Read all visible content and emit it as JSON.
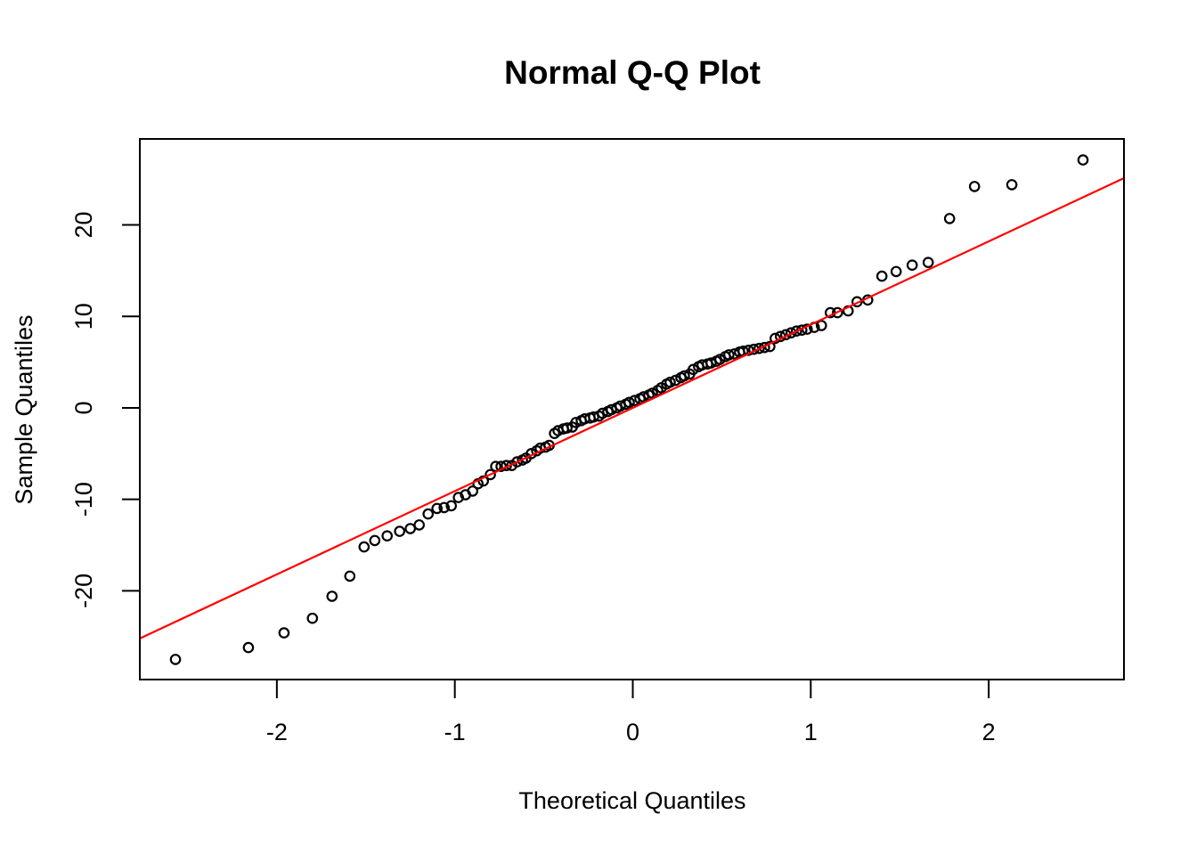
{
  "figure": {
    "background": "#FFFFFF",
    "foreground": "#000000"
  },
  "chart_data": {
    "type": "scatter",
    "title": "Normal Q-Q Plot",
    "xlabel": "Theoretical Quantiles",
    "ylabel": "Sample Quantiles",
    "x_ticks": [
      -2,
      -1,
      0,
      1,
      2
    ],
    "y_ticks": [
      -20,
      -10,
      0,
      10,
      20
    ],
    "xlim": [
      -2.77,
      2.76
    ],
    "ylim": [
      -29.7,
      29.4
    ],
    "grid": false,
    "legend": null,
    "marker": {
      "shape": "open-circle",
      "color": "#000000"
    },
    "reference_line": {
      "type": "qqline",
      "slope": 9.1,
      "intercept": 0.0,
      "color": "#FF0000"
    },
    "points": [
      [
        -2.57,
        -27.5
      ],
      [
        -2.16,
        -26.2
      ],
      [
        -1.96,
        -24.6
      ],
      [
        -1.8,
        -23.0
      ],
      [
        -1.69,
        -20.6
      ],
      [
        -1.59,
        -18.4
      ],
      [
        -1.51,
        -15.2
      ],
      [
        -1.45,
        -14.5
      ],
      [
        -1.38,
        -14.0
      ],
      [
        -1.31,
        -13.5
      ],
      [
        -1.25,
        -13.2
      ],
      [
        -1.2,
        -12.8
      ],
      [
        -1.15,
        -11.6
      ],
      [
        -1.1,
        -11.0
      ],
      [
        -1.06,
        -10.9
      ],
      [
        -1.02,
        -10.7
      ],
      [
        -0.98,
        -9.8
      ],
      [
        -0.94,
        -9.5
      ],
      [
        -0.9,
        -9.1
      ],
      [
        -0.87,
        -8.3
      ],
      [
        -0.84,
        -8.0
      ],
      [
        -0.8,
        -7.3
      ],
      [
        -0.77,
        -6.4
      ],
      [
        -0.74,
        -6.4
      ],
      [
        -0.71,
        -6.3
      ],
      [
        -0.68,
        -6.3
      ],
      [
        -0.65,
        -5.9
      ],
      [
        -0.62,
        -5.7
      ],
      [
        -0.6,
        -5.5
      ],
      [
        -0.57,
        -5.0
      ],
      [
        -0.54,
        -4.7
      ],
      [
        -0.52,
        -4.4
      ],
      [
        -0.49,
        -4.3
      ],
      [
        -0.47,
        -4.1
      ],
      [
        -0.44,
        -2.8
      ],
      [
        -0.42,
        -2.5
      ],
      [
        -0.39,
        -2.3
      ],
      [
        -0.37,
        -2.2
      ],
      [
        -0.34,
        -2.1
      ],
      [
        -0.32,
        -1.6
      ],
      [
        -0.29,
        -1.4
      ],
      [
        -0.27,
        -1.2
      ],
      [
        -0.24,
        -1.1
      ],
      [
        -0.22,
        -1.0
      ],
      [
        -0.19,
        -0.9
      ],
      [
        -0.17,
        -0.6
      ],
      [
        -0.14,
        -0.4
      ],
      [
        -0.12,
        -0.2
      ],
      [
        -0.09,
        0.0
      ],
      [
        -0.07,
        0.2
      ],
      [
        -0.04,
        0.4
      ],
      [
        -0.02,
        0.6
      ],
      [
        0.01,
        0.8
      ],
      [
        0.04,
        1.0
      ],
      [
        0.06,
        1.2
      ],
      [
        0.09,
        1.4
      ],
      [
        0.11,
        1.6
      ],
      [
        0.14,
        1.9
      ],
      [
        0.16,
        2.2
      ],
      [
        0.19,
        2.6
      ],
      [
        0.21,
        2.8
      ],
      [
        0.24,
        3.0
      ],
      [
        0.27,
        3.3
      ],
      [
        0.29,
        3.5
      ],
      [
        0.32,
        3.7
      ],
      [
        0.34,
        4.2
      ],
      [
        0.37,
        4.5
      ],
      [
        0.39,
        4.7
      ],
      [
        0.42,
        4.8
      ],
      [
        0.44,
        4.9
      ],
      [
        0.47,
        5.1
      ],
      [
        0.49,
        5.3
      ],
      [
        0.52,
        5.6
      ],
      [
        0.54,
        5.8
      ],
      [
        0.57,
        5.9
      ],
      [
        0.6,
        6.1
      ],
      [
        0.62,
        6.2
      ],
      [
        0.65,
        6.3
      ],
      [
        0.68,
        6.4
      ],
      [
        0.71,
        6.5
      ],
      [
        0.74,
        6.6
      ],
      [
        0.77,
        6.7
      ],
      [
        0.8,
        7.6
      ],
      [
        0.83,
        7.8
      ],
      [
        0.86,
        8.0
      ],
      [
        0.89,
        8.2
      ],
      [
        0.92,
        8.4
      ],
      [
        0.95,
        8.5
      ],
      [
        0.98,
        8.6
      ],
      [
        1.02,
        8.8
      ],
      [
        1.06,
        9.0
      ],
      [
        1.11,
        10.4
      ],
      [
        1.15,
        10.4
      ],
      [
        1.21,
        10.6
      ],
      [
        1.26,
        11.6
      ],
      [
        1.32,
        11.8
      ],
      [
        1.4,
        14.4
      ],
      [
        1.48,
        14.9
      ],
      [
        1.57,
        15.6
      ],
      [
        1.66,
        15.9
      ],
      [
        1.78,
        20.7
      ],
      [
        1.92,
        24.2
      ],
      [
        2.13,
        24.4
      ],
      [
        2.53,
        27.1
      ]
    ]
  }
}
